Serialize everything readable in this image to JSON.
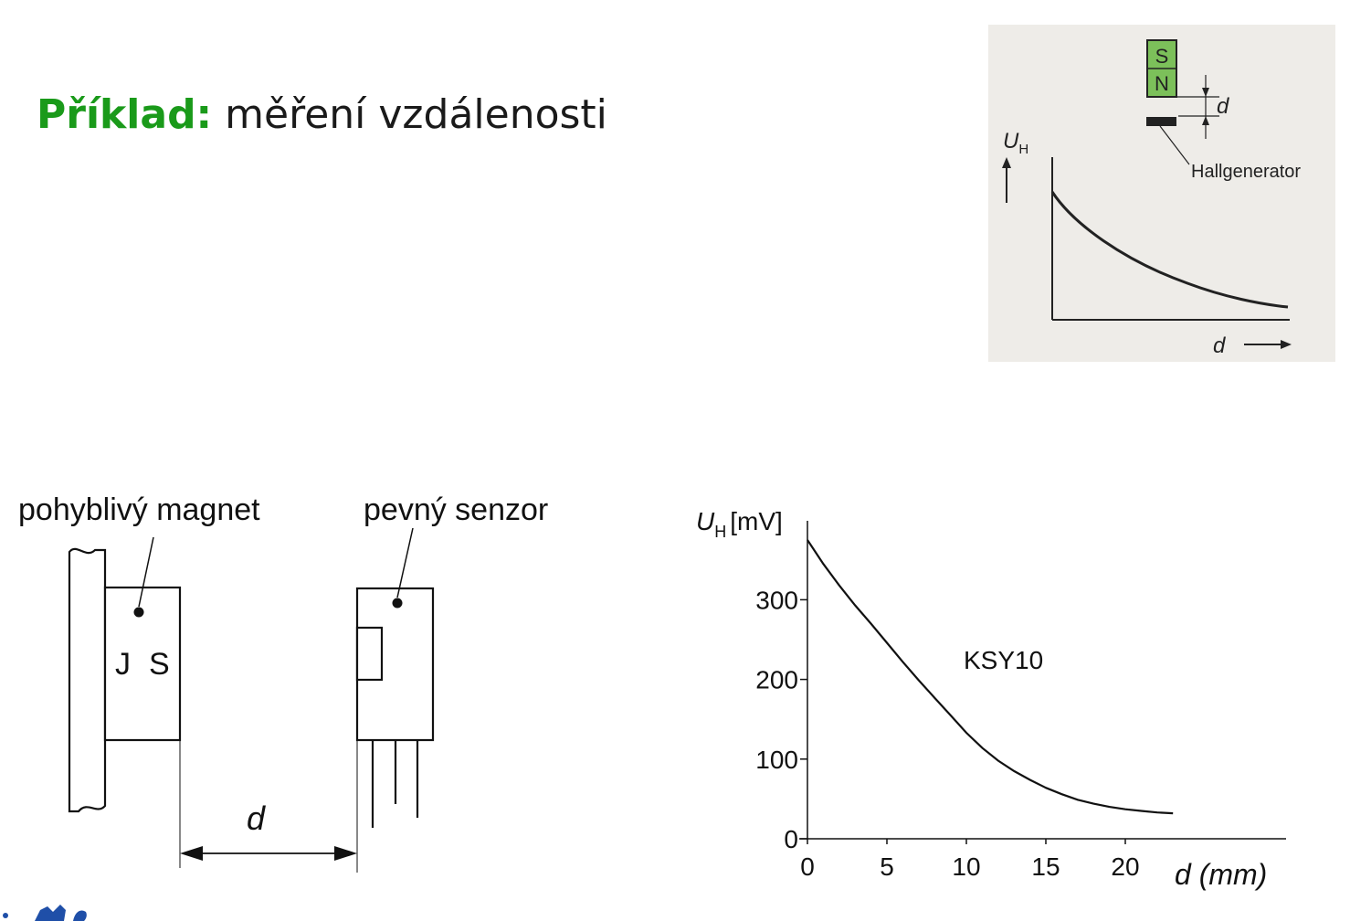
{
  "title": {
    "keyword": "Příklad:",
    "text": "měření vzdálenosti"
  },
  "inset": {
    "magnet_s": "S",
    "magnet_n": "N",
    "gap_label": "d",
    "y_axis_label": "U",
    "y_axis_sub": "H",
    "sensor_label": "Hallgenerator",
    "x_axis_label": "d",
    "colors": {
      "background": "#eeece8",
      "magnet": "#7cc05a"
    }
  },
  "diagram": {
    "magnet_label": "pohyblivý magnet",
    "sensor_label": "pevný senzor",
    "pole_j": "J",
    "pole_s": "S",
    "distance_label": "d"
  },
  "chart_data": {
    "type": "line",
    "title": "",
    "ylabel": "U",
    "ylabel_sub": "H",
    "yunit": "[mV]",
    "xlabel": "d (mm)",
    "xlim": [
      0,
      30
    ],
    "ylim": [
      0,
      400
    ],
    "xticks": [
      0,
      5,
      10,
      15,
      20
    ],
    "yticks": [
      0,
      100,
      200,
      300
    ],
    "series": [
      {
        "name": "KSY10",
        "x": [
          0,
          1,
          2,
          3,
          4,
          5,
          6,
          7,
          8,
          9,
          10,
          11,
          12,
          13,
          14,
          15,
          16,
          17,
          18,
          19,
          20,
          21,
          22,
          23
        ],
        "y": [
          375,
          345,
          318,
          293,
          270,
          246,
          222,
          199,
          177,
          155,
          133,
          114,
          98,
          85,
          74,
          64,
          56,
          49,
          44,
          40,
          37,
          35,
          33,
          32
        ]
      }
    ]
  }
}
